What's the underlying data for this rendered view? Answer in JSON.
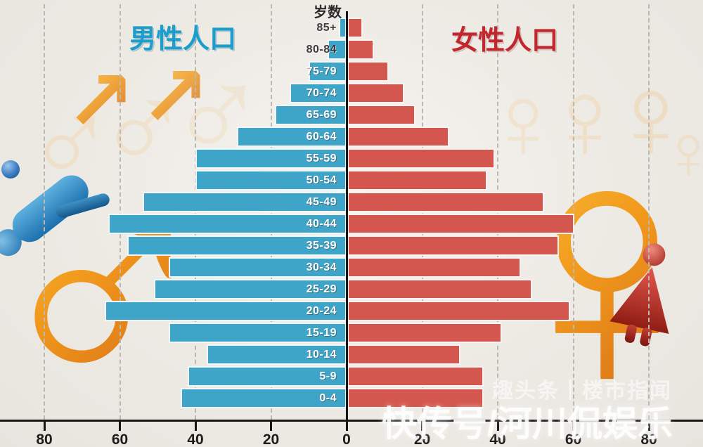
{
  "chart": {
    "age_axis_label": "岁数",
    "male_title": "男性人口",
    "female_title": "女性人口"
  },
  "chart_data": {
    "type": "bar",
    "variant": "population_pyramid",
    "title": "",
    "categories_top_to_bottom": [
      "85+",
      "80-84",
      "75-79",
      "70-74",
      "65-69",
      "60-64",
      "55-59",
      "50-54",
      "45-49",
      "40-44",
      "35-39",
      "30-34",
      "25-29",
      "20-24",
      "15-19",
      "10-14",
      "5-9",
      "0-4"
    ],
    "series": [
      {
        "name": "男性人口",
        "side": "left",
        "color": "#3fa5c8",
        "values": [
          2,
          5,
          10,
          15,
          19,
          29,
          40,
          40,
          54,
          63,
          58,
          47,
          51,
          64,
          47,
          37,
          42,
          44
        ]
      },
      {
        "name": "女性人口",
        "side": "right",
        "color": "#d4574f",
        "values": [
          4,
          7,
          11,
          15,
          18,
          27,
          39,
          37,
          52,
          60,
          56,
          46,
          49,
          59,
          41,
          30,
          36,
          36
        ]
      }
    ],
    "x_tick_labels": [
      "80",
      "60",
      "40",
      "20",
      "0",
      "20",
      "40",
      "60",
      "80"
    ],
    "x_tick_step": 20,
    "xlim_units": [
      -90,
      94
    ],
    "grid": "vertical-dashed",
    "legend_position": "titles-above-sides"
  },
  "watermarks": {
    "large": "快传号/河川侃娱乐",
    "small": "趣头条丨楼市指闻"
  },
  "icons": {
    "male_symbol_glyph": "♂",
    "female_symbol_glyph": "♀",
    "arrow_up_right_glyph": "↗"
  },
  "colors": {
    "male_bar": "#3fa5c8",
    "female_bar": "#d4574f",
    "male_title": "#1b9ecb",
    "female_title": "#c1272d",
    "axis": "#151515",
    "background": "#edeae4",
    "decor_orange_light": "#ffd24a",
    "decor_orange_dark": "#c75312"
  }
}
